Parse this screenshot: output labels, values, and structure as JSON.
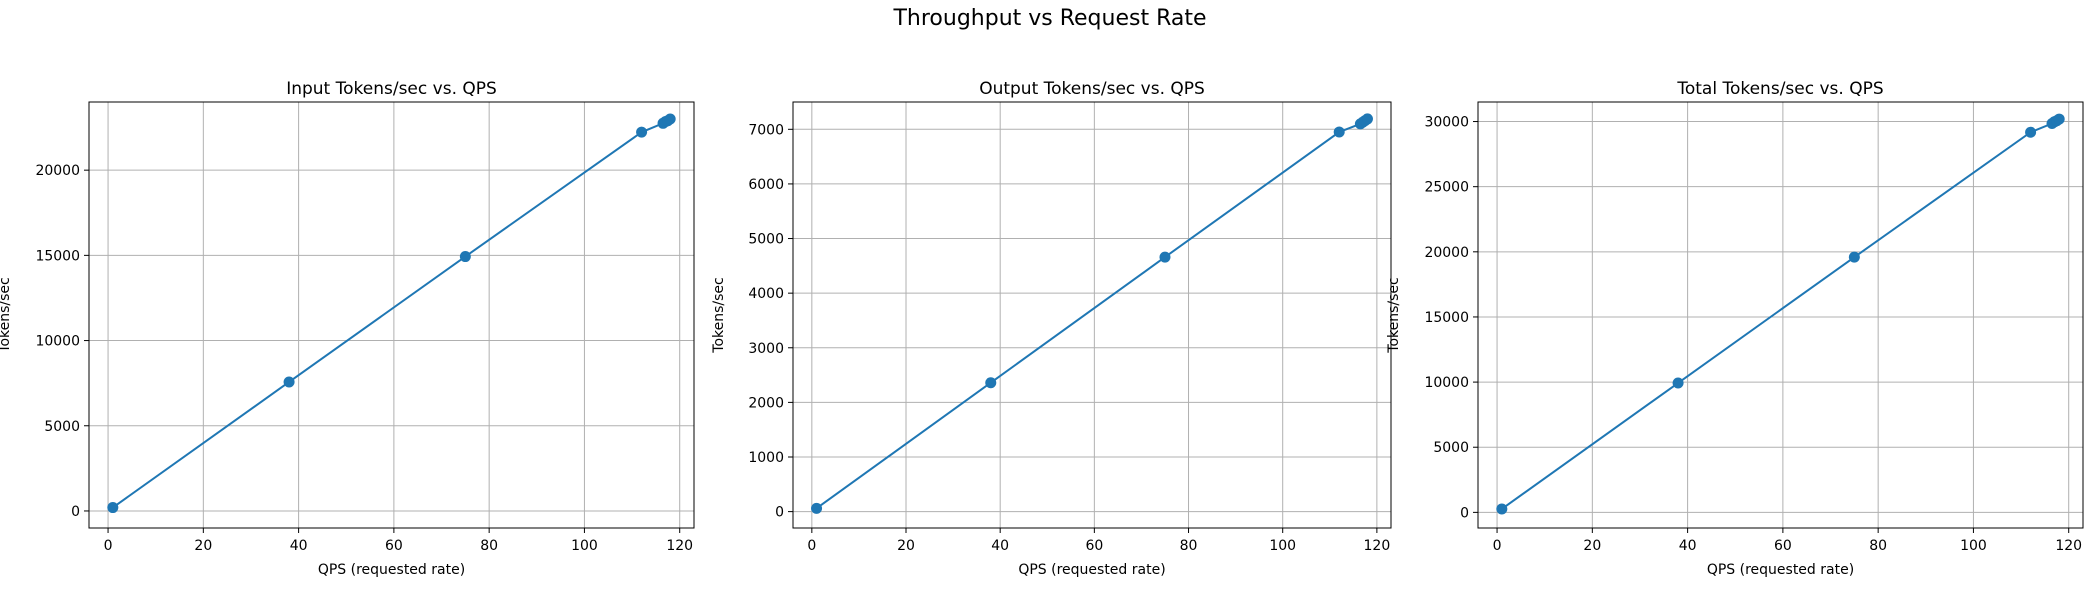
{
  "figure": {
    "title": "Throughput vs Request Rate"
  },
  "colors": {
    "series": "#1f77b4",
    "grid": "#b0b0b0",
    "axes": "#000000",
    "background": "#ffffff"
  },
  "chart_data": [
    {
      "type": "line",
      "title": "Input Tokens/sec vs. QPS",
      "xlabel": "QPS (requested rate)",
      "ylabel": "Tokens/sec",
      "xlim": [
        -4,
        123
      ],
      "ylim": [
        -1000,
        24000
      ],
      "xticks": [
        0,
        20,
        40,
        60,
        80,
        100,
        120
      ],
      "yticks": [
        0,
        5000,
        10000,
        15000,
        20000
      ],
      "grid": true,
      "legend": "none",
      "marker": "circle",
      "x": [
        1,
        38,
        75,
        112,
        116.5,
        117,
        117.5,
        118
      ],
      "y": [
        200,
        7570,
        14930,
        22230,
        22750,
        22850,
        22900,
        23000
      ]
    },
    {
      "type": "line",
      "title": "Output Tokens/sec vs. QPS",
      "xlabel": "QPS (requested rate)",
      "ylabel": "Tokens/sec",
      "xlim": [
        -4,
        123
      ],
      "ylim": [
        -300,
        7500
      ],
      "xticks": [
        0,
        20,
        40,
        60,
        80,
        100,
        120
      ],
      "yticks": [
        0,
        1000,
        2000,
        3000,
        4000,
        5000,
        6000,
        7000
      ],
      "grid": true,
      "legend": "none",
      "marker": "circle",
      "x": [
        1,
        38,
        75,
        112,
        116.5,
        117,
        117.5,
        118
      ],
      "y": [
        60,
        2360,
        4660,
        6950,
        7100,
        7130,
        7160,
        7190
      ]
    },
    {
      "type": "line",
      "title": "Total Tokens/sec vs. QPS",
      "xlabel": "QPS (requested rate)",
      "ylabel": "Tokens/sec",
      "xlim": [
        -4,
        123
      ],
      "ylim": [
        -1200,
        31500
      ],
      "xticks": [
        0,
        20,
        40,
        60,
        80,
        100,
        120
      ],
      "yticks": [
        0,
        5000,
        10000,
        15000,
        20000,
        25000,
        30000
      ],
      "grid": true,
      "legend": "none",
      "marker": "circle",
      "x": [
        1,
        38,
        75,
        112,
        116.5,
        117,
        117.5,
        118
      ],
      "y": [
        260,
        9930,
        19590,
        29180,
        29850,
        29980,
        30060,
        30190
      ]
    }
  ]
}
